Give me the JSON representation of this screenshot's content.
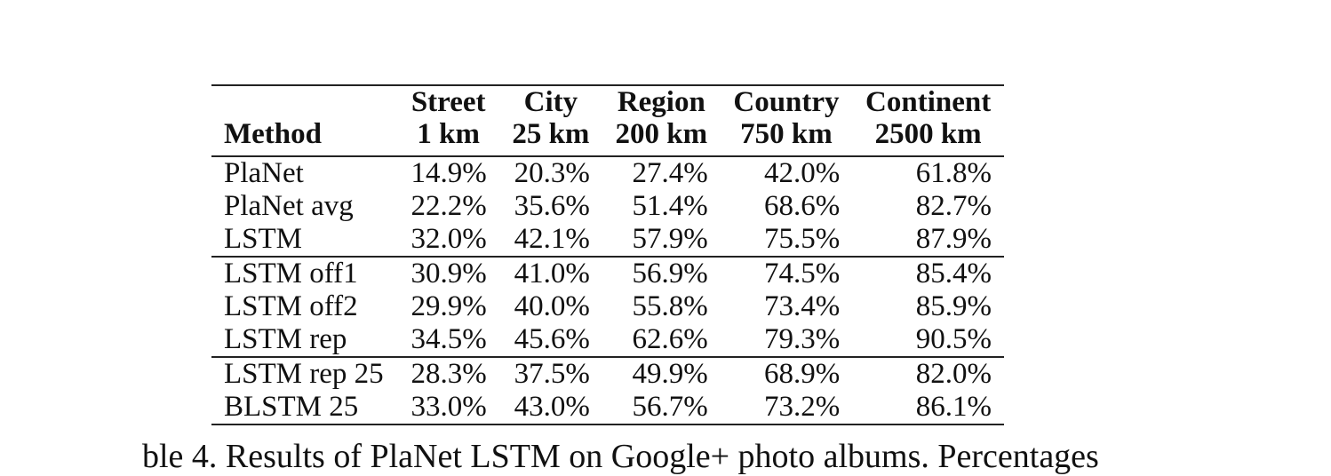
{
  "table": {
    "columns": [
      {
        "line1": "",
        "line2": "Method"
      },
      {
        "line1": "Street",
        "line2": "1 km"
      },
      {
        "line1": "City",
        "line2": "25 km"
      },
      {
        "line1": "Region",
        "line2": "200 km"
      },
      {
        "line1": "Country",
        "line2": "750 km"
      },
      {
        "line1": "Continent",
        "line2": "2500 km"
      }
    ],
    "groups": [
      [
        {
          "method": "PlaNet",
          "values": [
            "14.9%",
            "20.3%",
            "27.4%",
            "42.0%",
            "61.8%"
          ]
        },
        {
          "method": "PlaNet avg",
          "values": [
            "22.2%",
            "35.6%",
            "51.4%",
            "68.6%",
            "82.7%"
          ]
        },
        {
          "method": "LSTM",
          "values": [
            "32.0%",
            "42.1%",
            "57.9%",
            "75.5%",
            "87.9%"
          ]
        }
      ],
      [
        {
          "method": "LSTM off1",
          "values": [
            "30.9%",
            "41.0%",
            "56.9%",
            "74.5%",
            "85.4%"
          ]
        },
        {
          "method": "LSTM off2",
          "values": [
            "29.9%",
            "40.0%",
            "55.8%",
            "73.4%",
            "85.9%"
          ]
        },
        {
          "method": "LSTM rep",
          "values": [
            "34.5%",
            "45.6%",
            "62.6%",
            "79.3%",
            "90.5%"
          ]
        }
      ],
      [
        {
          "method": "LSTM rep 25",
          "values": [
            "28.3%",
            "37.5%",
            "49.9%",
            "68.9%",
            "82.0%"
          ]
        },
        {
          "method": "BLSTM 25",
          "values": [
            "33.0%",
            "43.0%",
            "56.7%",
            "73.2%",
            "86.1%"
          ]
        }
      ]
    ]
  },
  "caption": "ble 4. Results of PlaNet LSTM on Google+ photo albums. Percentages"
}
